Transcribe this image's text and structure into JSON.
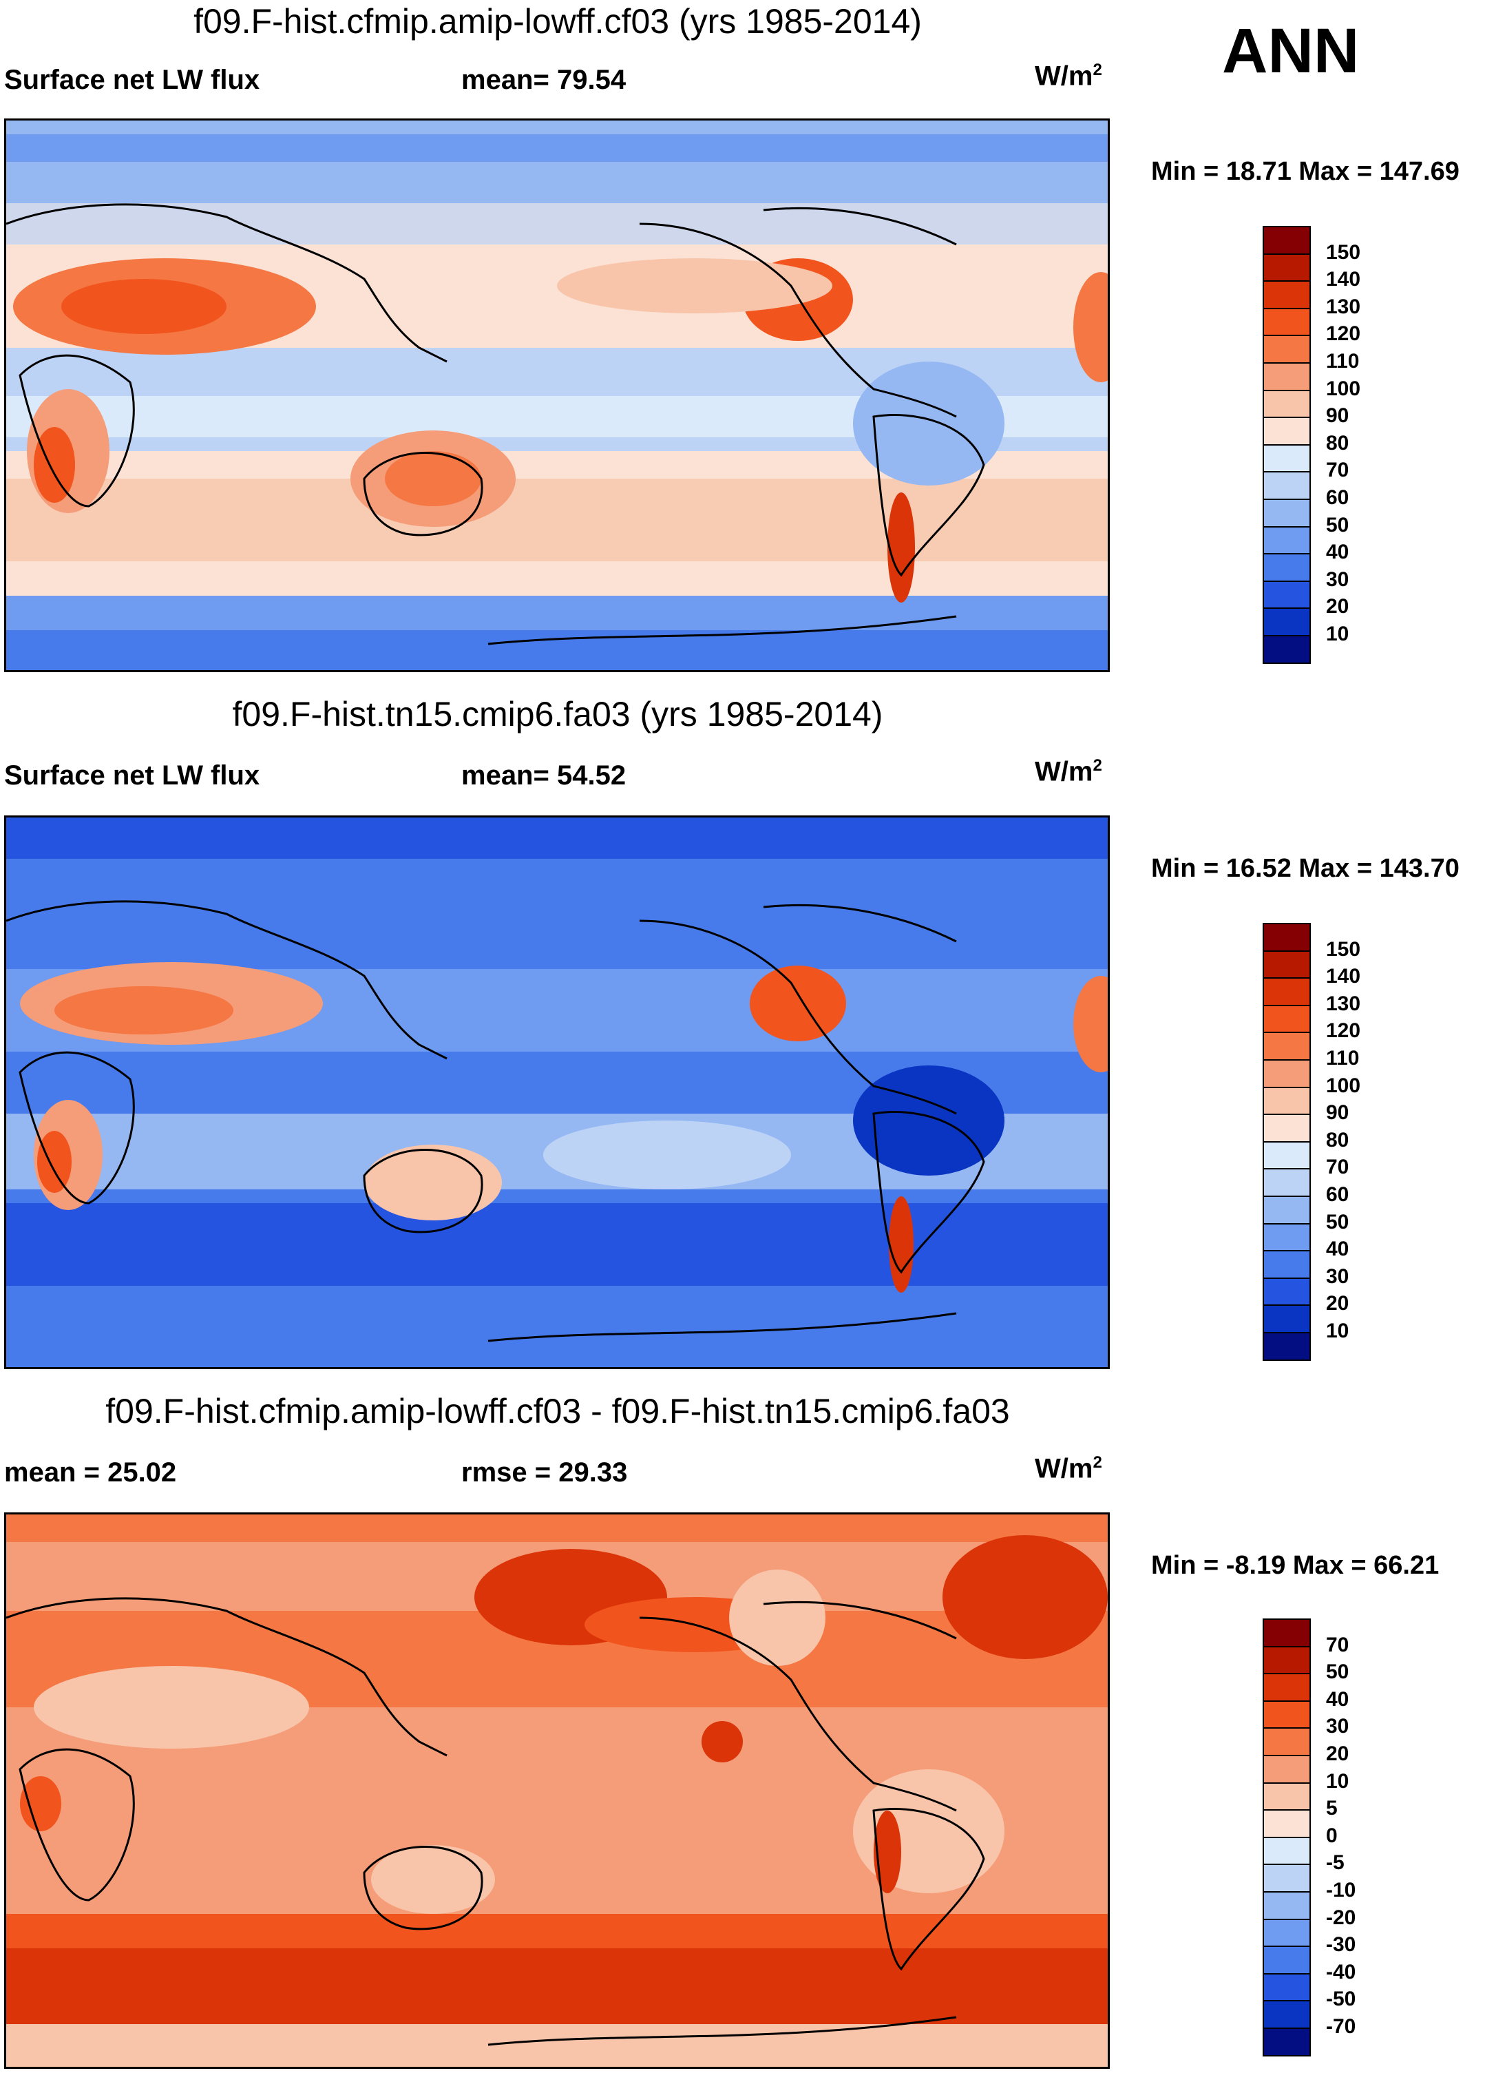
{
  "season": "ANN",
  "panels": [
    {
      "id": "p1",
      "title": "f09.F-hist.cfmip.amip-lowff.cf03 (yrs 1985-2014)",
      "left_label": "Surface net LW flux",
      "center_label": "mean=  79.54",
      "units": "W/m",
      "units_sup": "2",
      "minmax": "Min =  18.71 Max = 147.69",
      "colorbar": {
        "labels": [
          "150",
          "140",
          "130",
          "120",
          "110",
          "100",
          "90",
          "80",
          "70",
          "60",
          "50",
          "40",
          "30",
          "20",
          "10"
        ],
        "colors": [
          "#850003",
          "#b71800",
          "#db3408",
          "#f2541d",
          "#f47744",
          "#f59c78",
          "#f8c5aa",
          "#fbe2d4",
          "#dbeafa",
          "#bcd3f6",
          "#95b8f3",
          "#6f9bf0",
          "#477bec",
          "#2454e0",
          "#0a34c2",
          "#030e82"
        ]
      }
    },
    {
      "id": "p2",
      "title": "f09.F-hist.tn15.cmip6.fa03 (yrs 1985-2014)",
      "left_label": "Surface net LW flux",
      "center_label": "mean=  54.52",
      "units": "W/m",
      "units_sup": "2",
      "minmax": "Min =  16.52 Max = 143.70",
      "colorbar": {
        "labels": [
          "150",
          "140",
          "130",
          "120",
          "110",
          "100",
          "90",
          "80",
          "70",
          "60",
          "50",
          "40",
          "30",
          "20",
          "10"
        ],
        "colors": [
          "#850003",
          "#b71800",
          "#db3408",
          "#f2541d",
          "#f47744",
          "#f59c78",
          "#f8c5aa",
          "#fbe2d4",
          "#dbeafa",
          "#bcd3f6",
          "#95b8f3",
          "#6f9bf0",
          "#477bec",
          "#2454e0",
          "#0a34c2",
          "#030e82"
        ]
      }
    },
    {
      "id": "p3",
      "title": "f09.F-hist.cfmip.amip-lowff.cf03 - f09.F-hist.tn15.cmip6.fa03",
      "left_label": "mean =  25.02",
      "center_label": "rmse =  29.33",
      "units": "W/m",
      "units_sup": "2",
      "minmax": "Min =  -8.19 Max =  66.21",
      "colorbar": {
        "labels": [
          "70",
          "50",
          "40",
          "30",
          "20",
          "10",
          "5",
          "0",
          "-5",
          "-10",
          "-20",
          "-30",
          "-40",
          "-50",
          "-70"
        ],
        "colors": [
          "#850003",
          "#b71800",
          "#db3408",
          "#f2541d",
          "#f47744",
          "#f59c78",
          "#f8c5aa",
          "#fbe2d4",
          "#dbeafa",
          "#bcd3f6",
          "#95b8f3",
          "#6f9bf0",
          "#477bec",
          "#2454e0",
          "#0a34c2",
          "#030e82"
        ]
      }
    }
  ],
  "chart_data": [
    {
      "type": "heatmap",
      "title": "f09.F-hist.cfmip.amip-lowff.cf03 (yrs 1985-2014)",
      "variable": "Surface net LW flux",
      "units": "W/m2",
      "mean": 79.54,
      "min": 18.71,
      "max": 147.69,
      "levels": [
        10,
        20,
        30,
        40,
        50,
        60,
        70,
        80,
        90,
        100,
        110,
        120,
        130,
        140,
        150
      ]
    },
    {
      "type": "heatmap",
      "title": "f09.F-hist.tn15.cmip6.fa03 (yrs 1985-2014)",
      "variable": "Surface net LW flux",
      "units": "W/m2",
      "mean": 54.52,
      "min": 16.52,
      "max": 143.7,
      "levels": [
        10,
        20,
        30,
        40,
        50,
        60,
        70,
        80,
        90,
        100,
        110,
        120,
        130,
        140,
        150
      ]
    },
    {
      "type": "heatmap",
      "title": "f09.F-hist.cfmip.amip-lowff.cf03 - f09.F-hist.tn15.cmip6.fa03",
      "units": "W/m2",
      "mean": 25.02,
      "rmse": 29.33,
      "min": -8.19,
      "max": 66.21,
      "levels": [
        -70,
        -50,
        -40,
        -30,
        -20,
        -10,
        -5,
        0,
        5,
        10,
        20,
        30,
        40,
        50,
        70
      ]
    }
  ]
}
